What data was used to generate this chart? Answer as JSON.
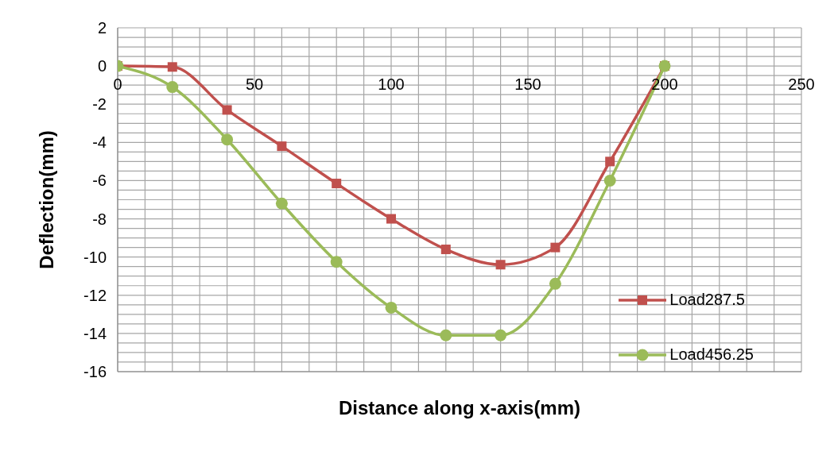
{
  "chart_data": {
    "type": "line",
    "xlabel": "Distance along x-axis(mm)",
    "ylabel": "Deflection(mm)",
    "x": [
      0,
      20,
      40,
      60,
      80,
      100,
      120,
      140,
      160,
      180,
      200
    ],
    "series": [
      {
        "name": "Load287.5",
        "color": "#c0504d",
        "marker": "square",
        "values": [
          0,
          -0.05,
          -2.3,
          -4.2,
          -6.15,
          -8.0,
          -9.6,
          -10.4,
          -9.5,
          -5.0,
          0
        ]
      },
      {
        "name": "Load456.25",
        "color": "#9bbb59",
        "marker": "circle",
        "values": [
          0,
          -1.1,
          -3.85,
          -7.2,
          -10.25,
          -12.65,
          -14.1,
          -14.1,
          -11.4,
          -6.0,
          0
        ]
      }
    ],
    "xlim": [
      0,
      250
    ],
    "xticks": [
      0,
      {
        "value": 10,
        "label": null
      },
      {
        "value": 20,
        "label": null
      },
      {
        "value": 30,
        "label": null
      },
      {
        "value": 40,
        "label": null
      },
      50,
      {
        "value": 60,
        "label": null
      },
      {
        "value": 70,
        "label": null
      },
      {
        "value": 80,
        "label": null
      },
      {
        "value": 90,
        "label": null
      },
      100,
      {
        "value": 110,
        "label": null
      },
      {
        "value": 120,
        "label": null
      },
      {
        "value": 130,
        "label": null
      },
      {
        "value": 140,
        "label": null
      },
      150,
      {
        "value": 160,
        "label": null
      },
      {
        "value": 170,
        "label": null
      },
      {
        "value": 180,
        "label": null
      },
      {
        "value": 190,
        "label": null
      },
      200,
      {
        "value": 210,
        "label": null
      },
      {
        "value": 220,
        "label": null
      },
      {
        "value": 230,
        "label": null
      },
      {
        "value": 240,
        "label": null
      },
      250
    ],
    "ylim": [
      -16,
      2
    ],
    "yticks": [
      -16,
      {
        "value": -15.5,
        "label": null
      },
      {
        "value": -15,
        "label": null
      },
      {
        "value": -14.5,
        "label": null
      },
      -14,
      {
        "value": -13.5,
        "label": null
      },
      {
        "value": -13,
        "label": null
      },
      {
        "value": -12.5,
        "label": null
      },
      -12,
      {
        "value": -11.5,
        "label": null
      },
      {
        "value": -11,
        "label": null
      },
      {
        "value": -10.5,
        "label": null
      },
      -10,
      {
        "value": -9.5,
        "label": null
      },
      {
        "value": -9,
        "label": null
      },
      {
        "value": -8.5,
        "label": null
      },
      -8,
      {
        "value": -7.5,
        "label": null
      },
      {
        "value": -7,
        "label": null
      },
      {
        "value": -6.5,
        "label": null
      },
      -6,
      {
        "value": -5.5,
        "label": null
      },
      {
        "value": -5,
        "label": null
      },
      {
        "value": -4.5,
        "label": null
      },
      -4,
      {
        "value": -3.5,
        "label": null
      },
      {
        "value": -3,
        "label": null
      },
      {
        "value": -2.5,
        "label": null
      },
      -2,
      {
        "value": -1.5,
        "label": null
      },
      {
        "value": -1,
        "label": null
      },
      {
        "value": -0.5,
        "label": null
      },
      0,
      {
        "value": 0.5,
        "label": null
      },
      {
        "value": 1,
        "label": null
      },
      {
        "value": 1.5,
        "label": null
      },
      2
    ],
    "grid": true,
    "legend": "bottom right",
    "line_style": "solid"
  }
}
